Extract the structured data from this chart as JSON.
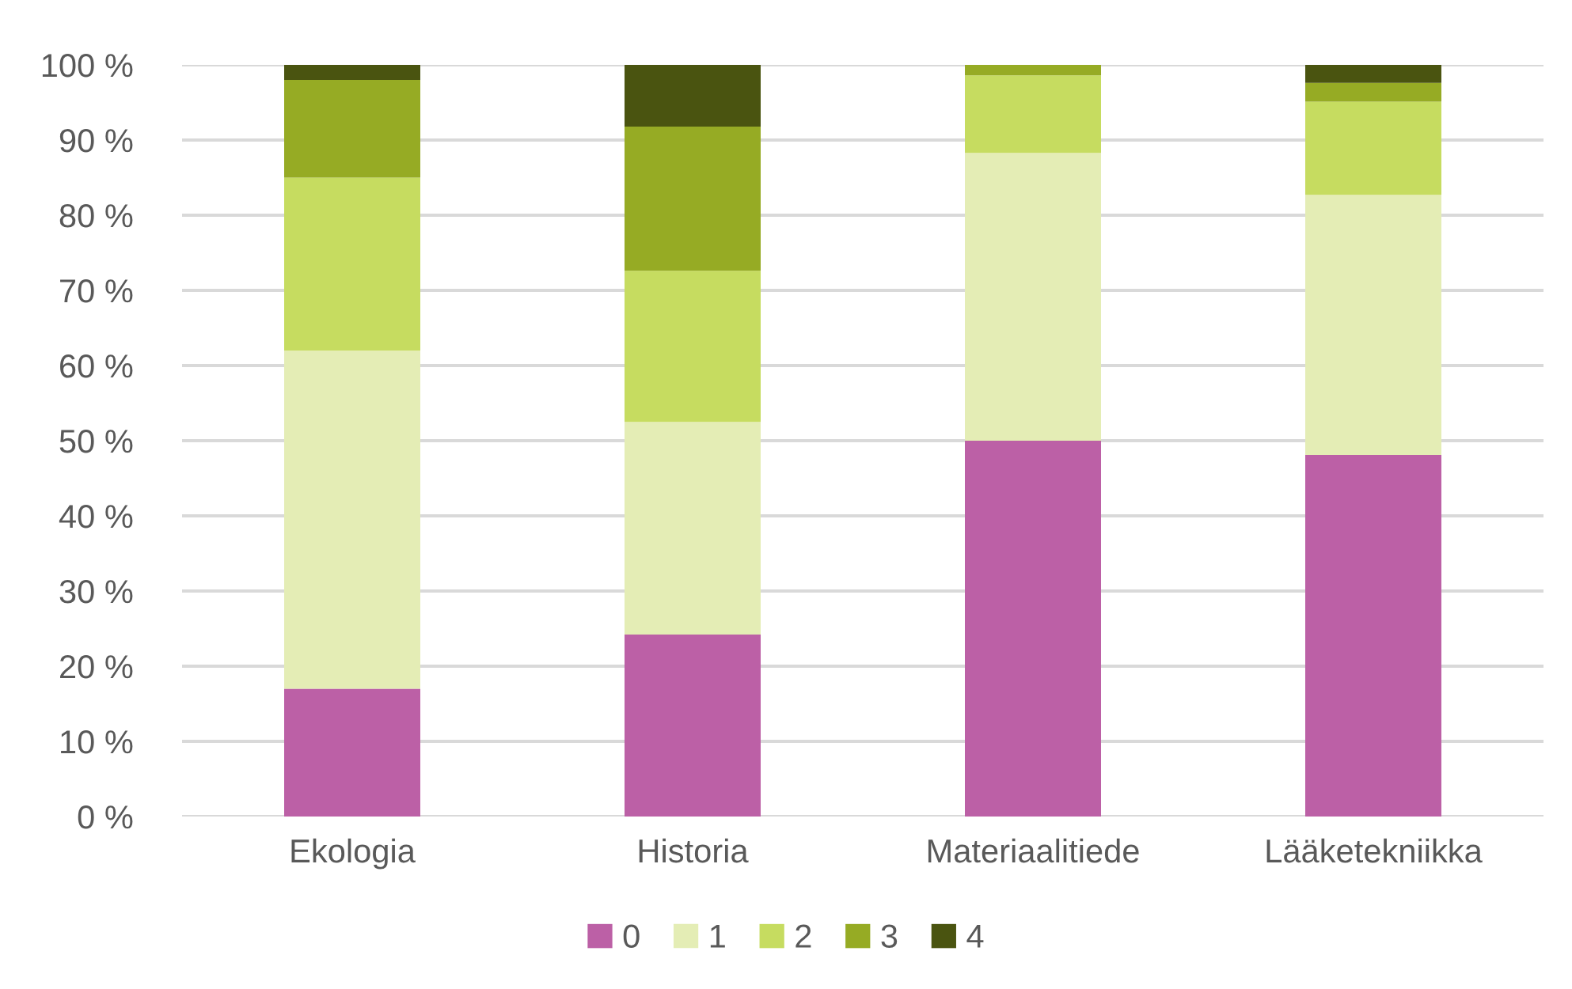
{
  "chart_data": {
    "type": "bar",
    "stacked": true,
    "categories": [
      "Ekologia",
      "Historia",
      "Materiaalitiede",
      "Lääketekniikka"
    ],
    "series": [
      {
        "name": "0",
        "color": "#bc60a6",
        "values": [
          17,
          24.2,
          50,
          48.1
        ]
      },
      {
        "name": "1",
        "color": "#e4edb5",
        "values": [
          45,
          28.3,
          38.3,
          34.6
        ]
      },
      {
        "name": "2",
        "color": "#c6dc60",
        "values": [
          23,
          20.1,
          10.3,
          12.4
        ]
      },
      {
        "name": "3",
        "color": "#96ab24",
        "values": [
          13,
          19.2,
          1.4,
          2.5
        ]
      },
      {
        "name": "4",
        "color": "#4a5410",
        "values": [
          2,
          8.2,
          0,
          2.4
        ]
      }
    ],
    "ylim": [
      0,
      100
    ],
    "yticks": [
      {
        "value": 0,
        "label": "0 %"
      },
      {
        "value": 10,
        "label": "10 %"
      },
      {
        "value": 20,
        "label": "20 %"
      },
      {
        "value": 30,
        "label": "30 %"
      },
      {
        "value": 40,
        "label": "40 %"
      },
      {
        "value": 50,
        "label": "50 %"
      },
      {
        "value": 60,
        "label": "60 %"
      },
      {
        "value": 70,
        "label": "70 %"
      },
      {
        "value": 80,
        "label": "80 %"
      },
      {
        "value": 90,
        "label": "90 %"
      },
      {
        "value": 100,
        "label": "100 %"
      }
    ],
    "grid": "y",
    "legend": "bottom"
  }
}
